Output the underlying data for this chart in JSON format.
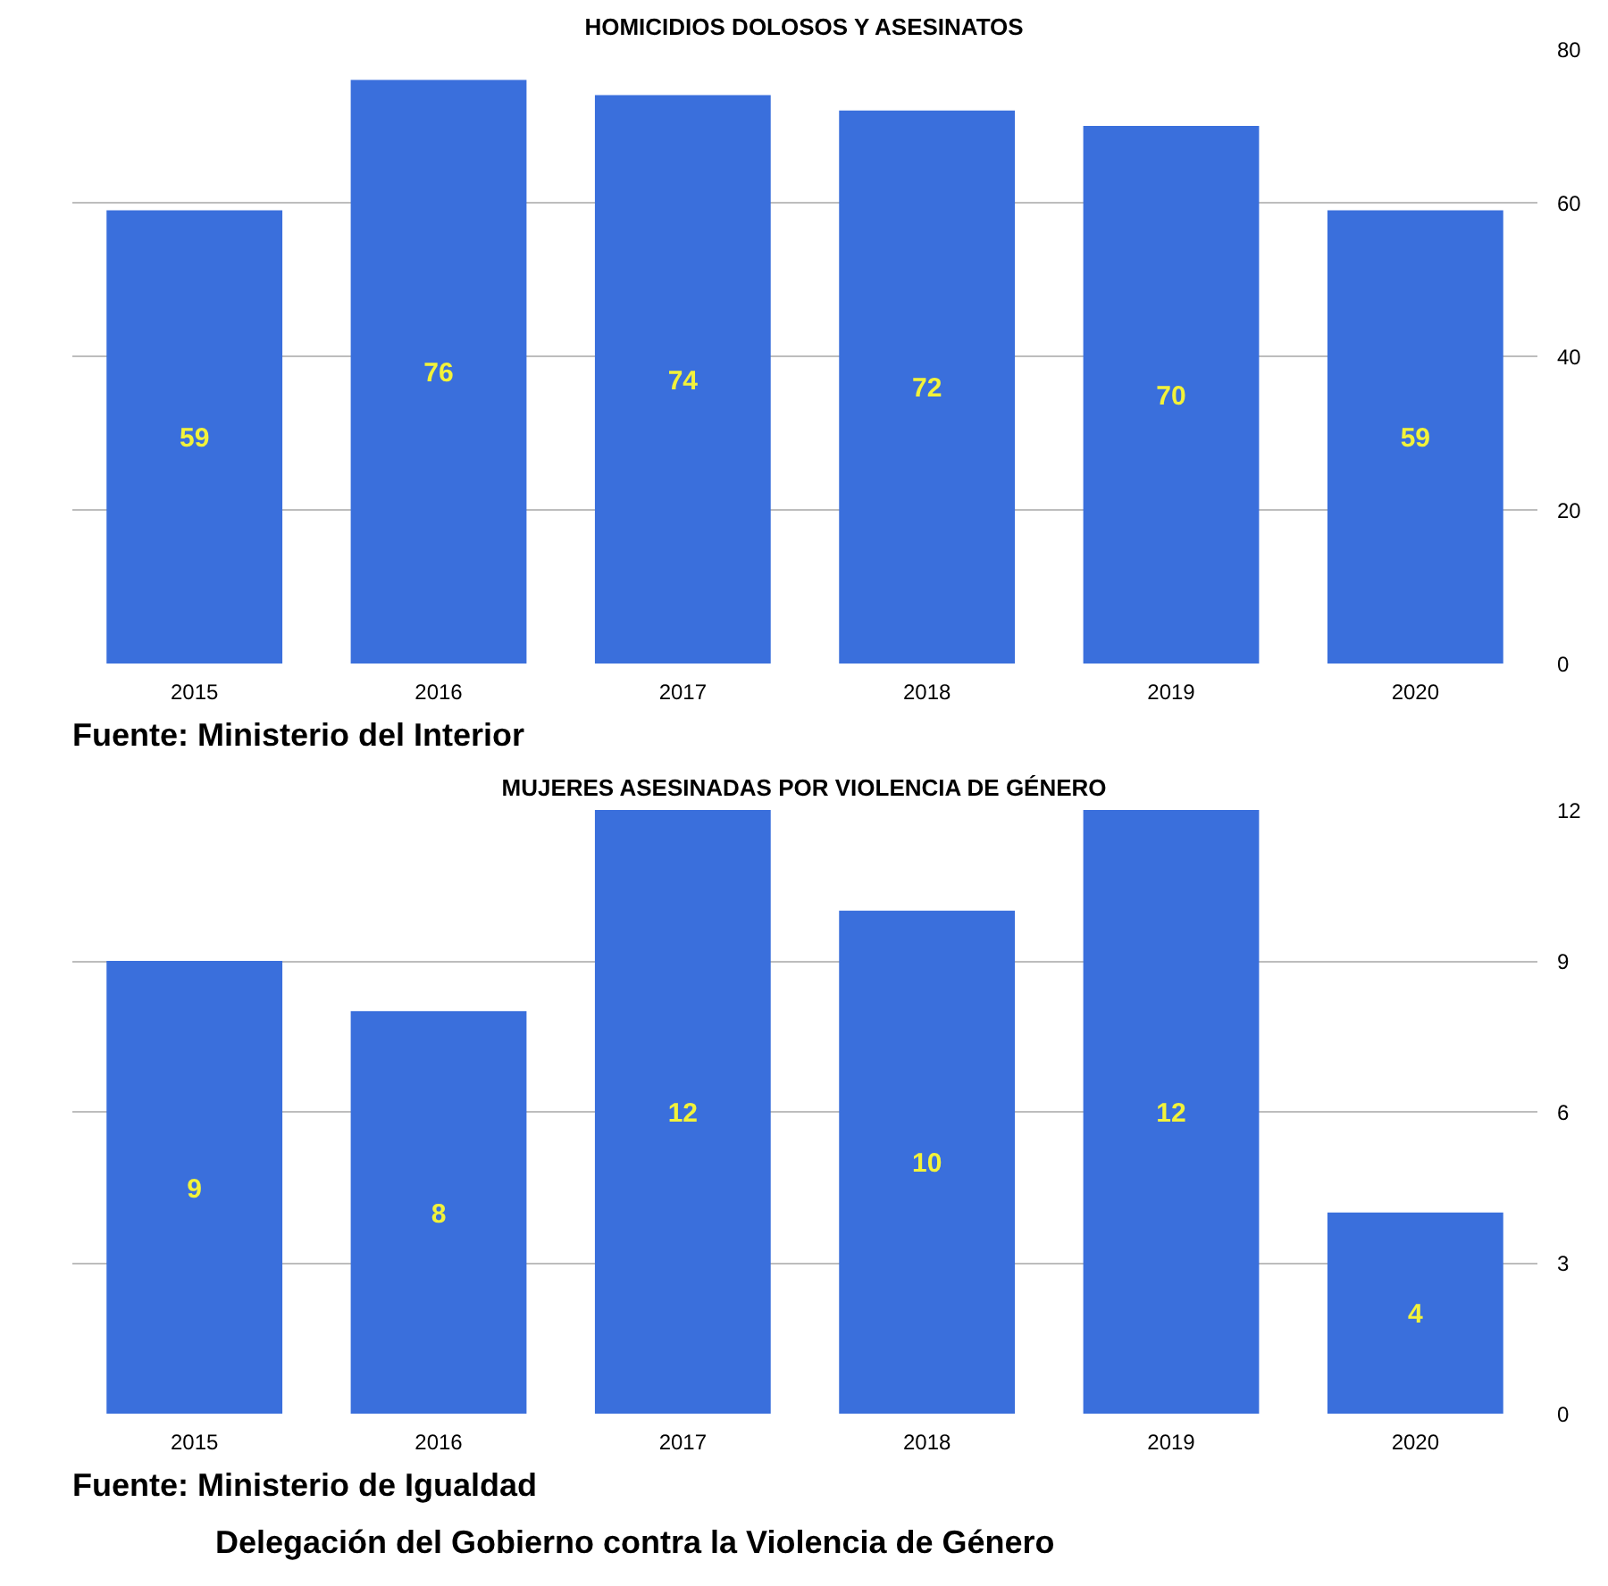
{
  "chart_data": [
    {
      "type": "bar",
      "title": "HOMICIDIOS DOLOSOS Y ASESINATOS",
      "categories": [
        "2015",
        "2016",
        "2017",
        "2018",
        "2019",
        "2020"
      ],
      "values": [
        59,
        76,
        74,
        72,
        70,
        59
      ],
      "color": "#3a6fdc",
      "ylim": [
        0,
        80
      ],
      "yticks": [
        0,
        20,
        40,
        60,
        80
      ],
      "grid": "y",
      "data_labels": true,
      "annotations": [
        "Fuente: Ministerio del Interior"
      ]
    },
    {
      "type": "bar",
      "title": "MUJERES ASESINADAS POR VIOLENCIA DE GÉNERO",
      "categories": [
        "2015",
        "2016",
        "2017",
        "2018",
        "2019",
        "2020"
      ],
      "values": [
        9,
        8,
        12,
        10,
        12,
        4
      ],
      "color": "#3a6fdc",
      "ylim": [
        0,
        12
      ],
      "yticks": [
        0,
        3,
        6,
        9,
        12
      ],
      "grid": "y",
      "data_labels": true,
      "annotations": [
        "Fuente: Ministerio de Igualdad",
        "Delegación del Gobierno contra la Violencia de Género"
      ]
    }
  ]
}
